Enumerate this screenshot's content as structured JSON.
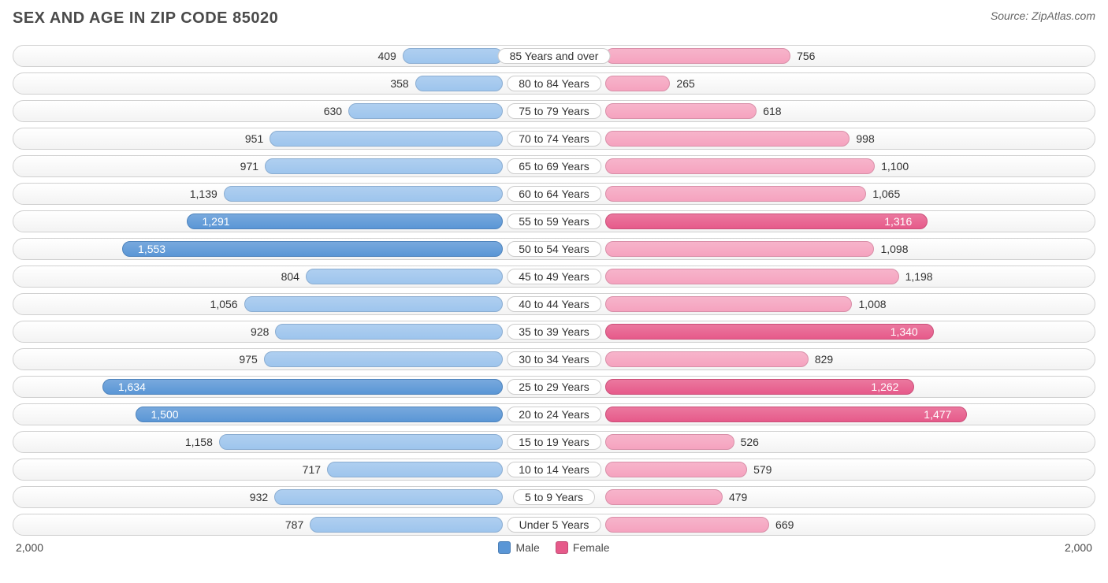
{
  "title": "SEX AND AGE IN ZIP CODE 85020",
  "source": "Source: ZipAtlas.com",
  "chart": {
    "type": "population-pyramid",
    "axis_max": 2000,
    "axis_label_left": "2,000",
    "axis_label_right": "2,000",
    "male_color_light": "#9ec5ed",
    "male_color_dark": "#5a96d6",
    "female_color_light": "#f5a3bf",
    "female_color_dark": "#e65a8a",
    "inside_threshold": 1250,
    "center_label_halfwidth": 65,
    "row_border_color": "#d0d0d0",
    "background_color": "#ffffff",
    "label_fontsize": 14,
    "title_fontsize": 20,
    "rows": [
      {
        "label": "85 Years and over",
        "male": 409,
        "female": 756
      },
      {
        "label": "80 to 84 Years",
        "male": 358,
        "female": 265
      },
      {
        "label": "75 to 79 Years",
        "male": 630,
        "female": 618
      },
      {
        "label": "70 to 74 Years",
        "male": 951,
        "female": 998
      },
      {
        "label": "65 to 69 Years",
        "male": 971,
        "female": 1100
      },
      {
        "label": "60 to 64 Years",
        "male": 1139,
        "female": 1065
      },
      {
        "label": "55 to 59 Years",
        "male": 1291,
        "female": 1316
      },
      {
        "label": "50 to 54 Years",
        "male": 1553,
        "female": 1098
      },
      {
        "label": "45 to 49 Years",
        "male": 804,
        "female": 1198
      },
      {
        "label": "40 to 44 Years",
        "male": 1056,
        "female": 1008
      },
      {
        "label": "35 to 39 Years",
        "male": 928,
        "female": 1340
      },
      {
        "label": "30 to 34 Years",
        "male": 975,
        "female": 829
      },
      {
        "label": "25 to 29 Years",
        "male": 1634,
        "female": 1262
      },
      {
        "label": "20 to 24 Years",
        "male": 1500,
        "female": 1477
      },
      {
        "label": "15 to 19 Years",
        "male": 1158,
        "female": 526
      },
      {
        "label": "10 to 14 Years",
        "male": 717,
        "female": 579
      },
      {
        "label": "5 to 9 Years",
        "male": 932,
        "female": 479
      },
      {
        "label": "Under 5 Years",
        "male": 787,
        "female": 669
      }
    ]
  },
  "legend": {
    "male_label": "Male",
    "female_label": "Female"
  }
}
